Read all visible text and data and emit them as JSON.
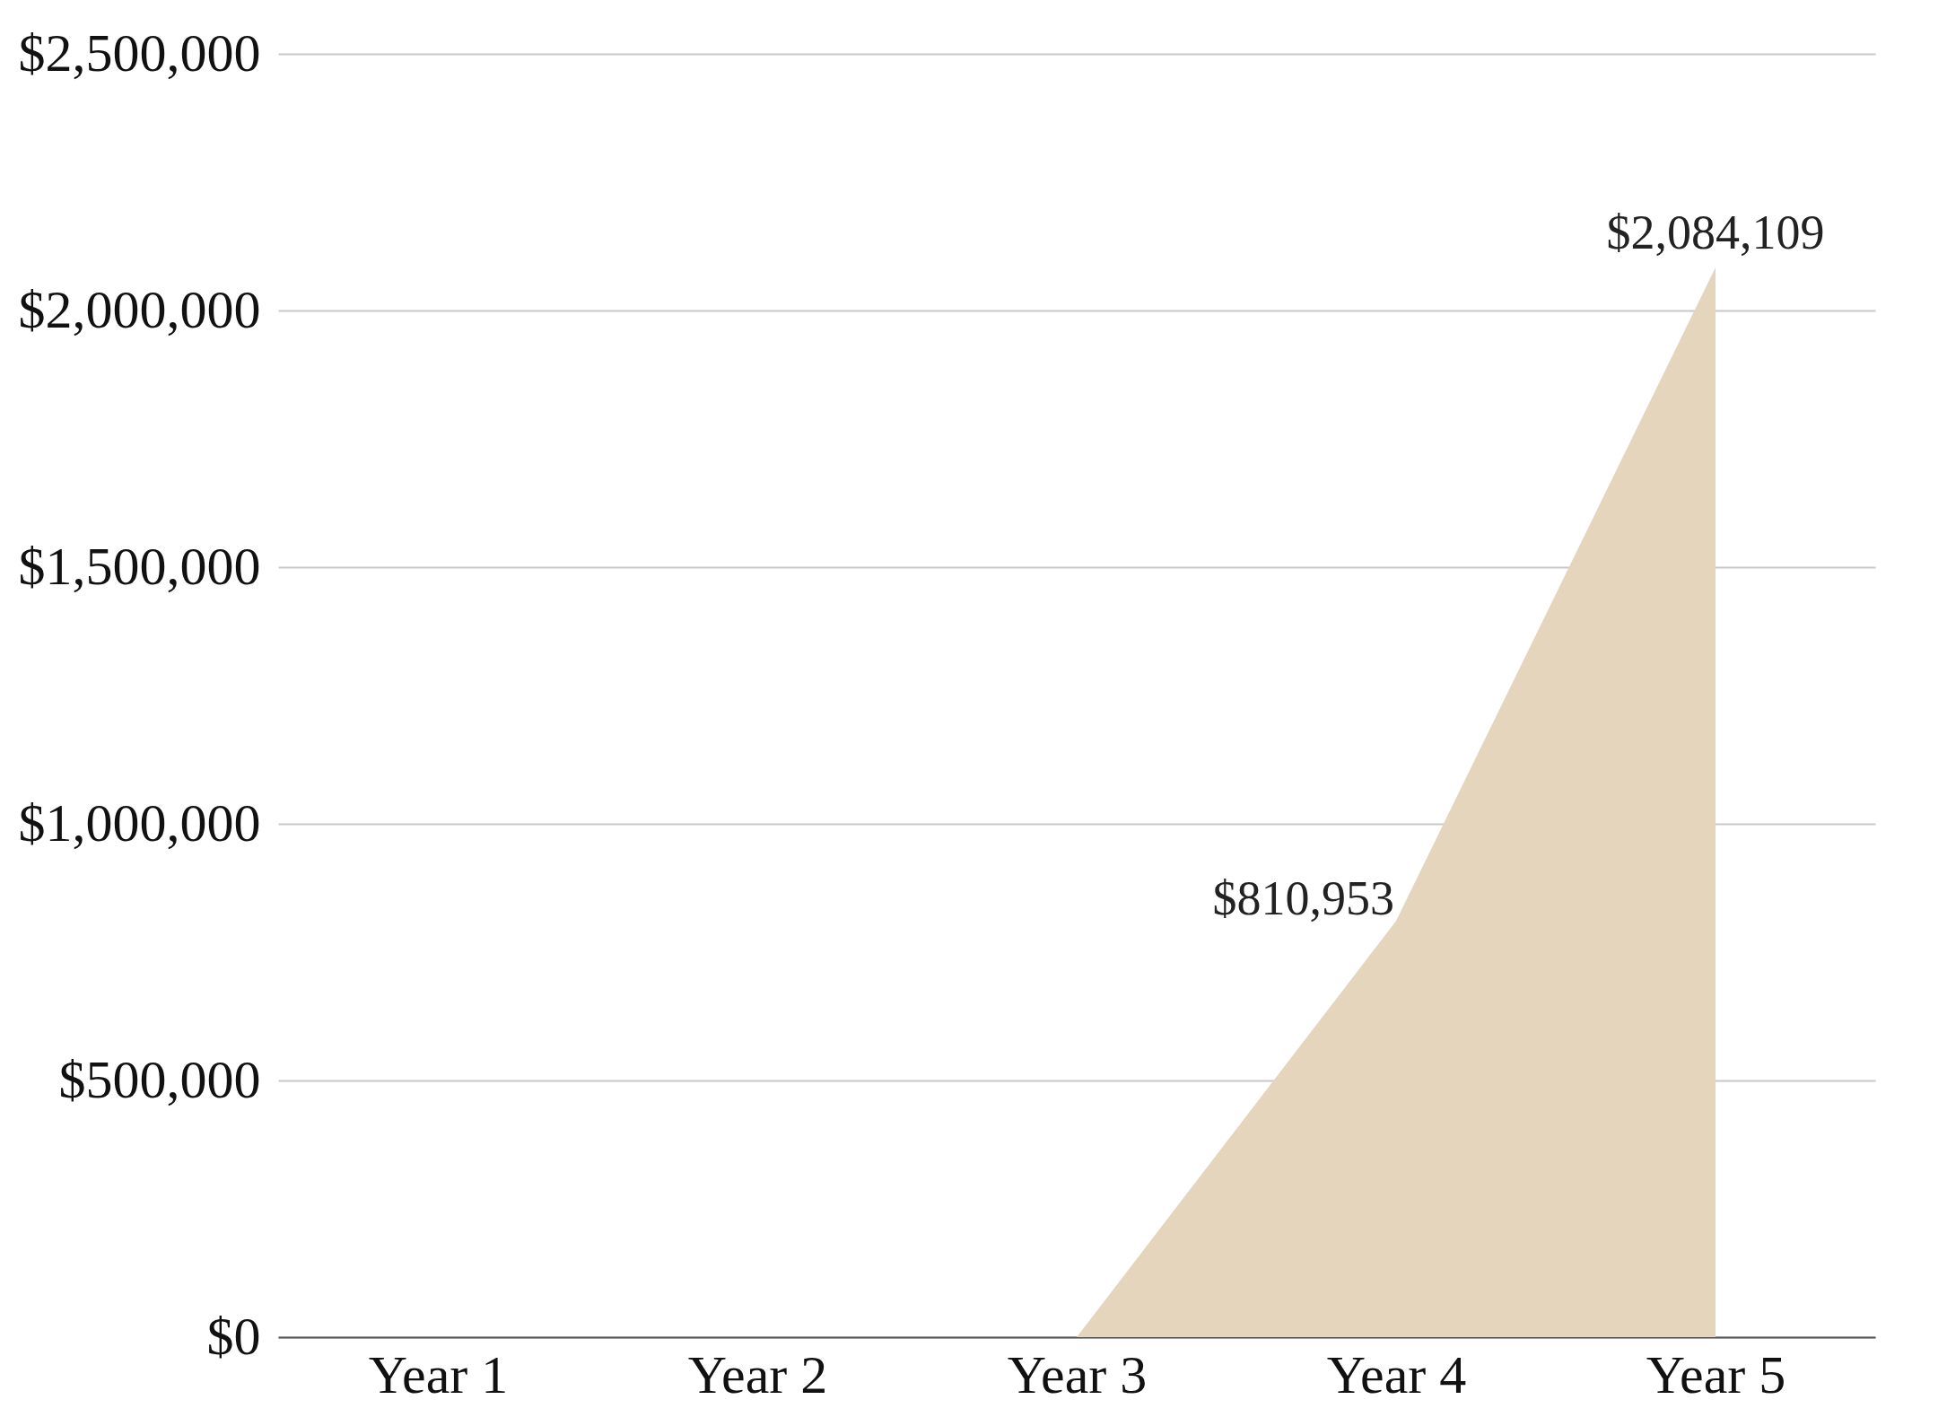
{
  "chart_data": {
    "type": "area",
    "categories": [
      "Year 1",
      "Year 2",
      "Year 3",
      "Year 4",
      "Year 5"
    ],
    "series": [
      {
        "color": "#e4d5bc",
        "values": [
          0,
          0,
          0,
          810953,
          2084109
        ],
        "value_labels": [
          null,
          null,
          null,
          "$810,953",
          "$2,084,109"
        ]
      }
    ],
    "ylim": [
      0,
      2500000
    ],
    "yticks": [
      {
        "value": 0,
        "label": "$0"
      },
      {
        "value": 500000,
        "label": "$500,000"
      },
      {
        "value": 1000000,
        "label": "$1,000,000"
      },
      {
        "value": 1500000,
        "label": "$1,500,000"
      },
      {
        "value": 2000000,
        "label": "$2,000,000"
      },
      {
        "value": 2500000,
        "label": "$2,500,000"
      }
    ],
    "grid": "y"
  }
}
